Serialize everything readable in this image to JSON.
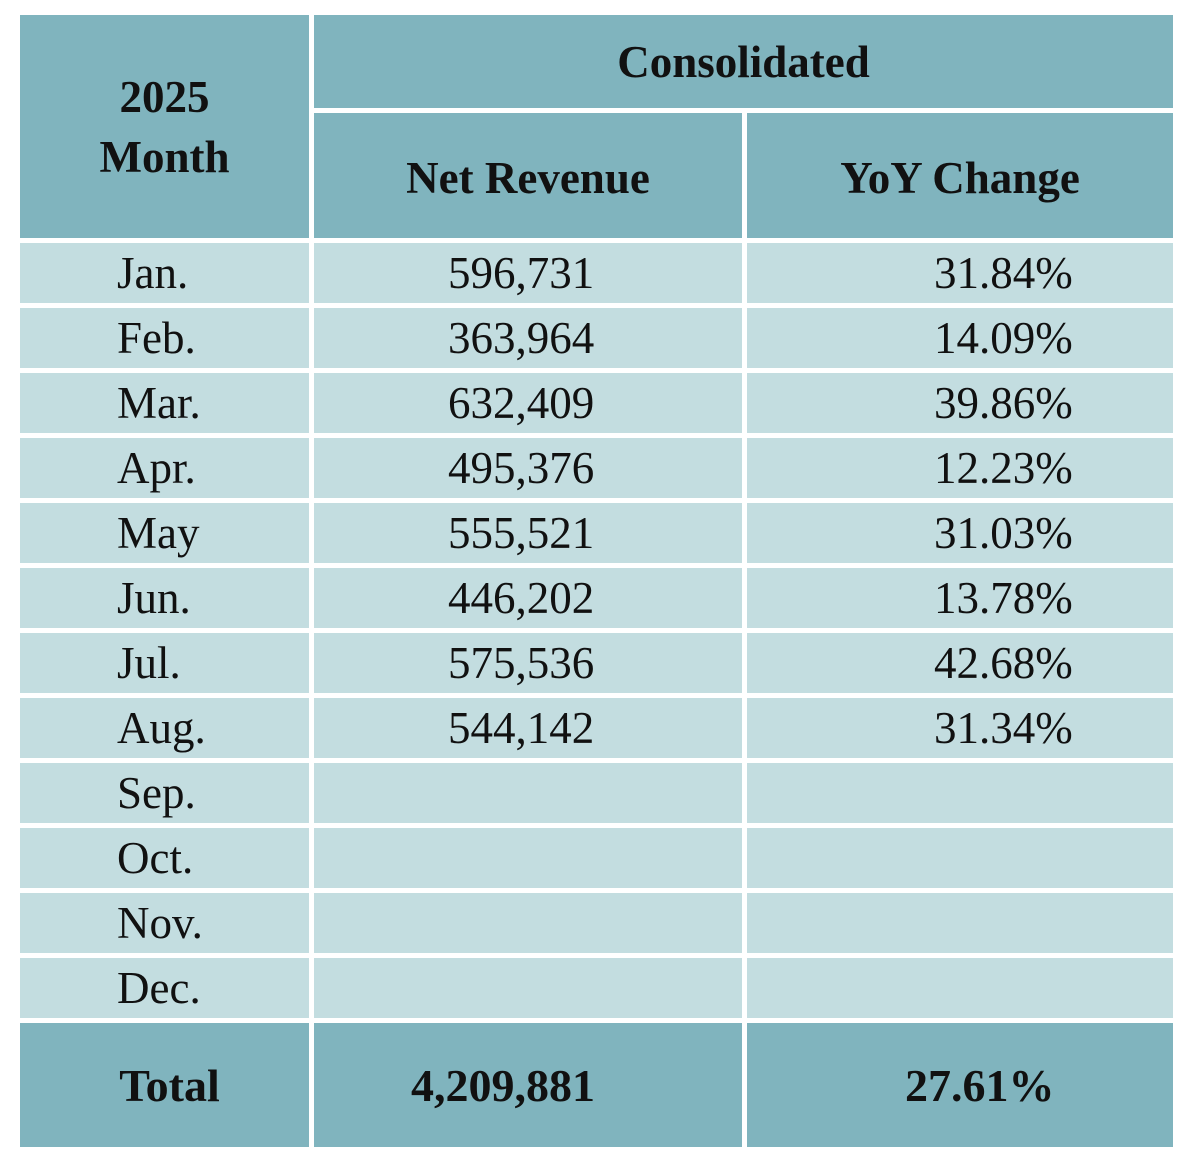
{
  "header": {
    "year": "2025",
    "month_label": "Month",
    "group_label": "Consolidated",
    "col_revenue": "Net Revenue",
    "col_yoy": "YoY Change"
  },
  "rows": [
    {
      "month": "Jan.",
      "revenue": "596,731",
      "yoy": "31.84%"
    },
    {
      "month": "Feb.",
      "revenue": "363,964",
      "yoy": "14.09%"
    },
    {
      "month": "Mar.",
      "revenue": "632,409",
      "yoy": "39.86%"
    },
    {
      "month": "Apr.",
      "revenue": "495,376",
      "yoy": "12.23%"
    },
    {
      "month": "May",
      "revenue": "555,521",
      "yoy": "31.03%"
    },
    {
      "month": "Jun.",
      "revenue": "446,202",
      "yoy": "13.78%"
    },
    {
      "month": "Jul.",
      "revenue": "575,536",
      "yoy": "42.68%"
    },
    {
      "month": "Aug.",
      "revenue": "544,142",
      "yoy": "31.34%"
    },
    {
      "month": "Sep.",
      "revenue": "",
      "yoy": ""
    },
    {
      "month": "Oct.",
      "revenue": "",
      "yoy": ""
    },
    {
      "month": "Nov.",
      "revenue": "",
      "yoy": ""
    },
    {
      "month": "Dec.",
      "revenue": "",
      "yoy": ""
    }
  ],
  "total": {
    "label": "Total",
    "revenue": "4,209,881",
    "yoy": "27.61%"
  },
  "colors": {
    "header_bg": "#80b4be",
    "row_bg": "#c3dde0",
    "grid_line": "#ffffff"
  }
}
